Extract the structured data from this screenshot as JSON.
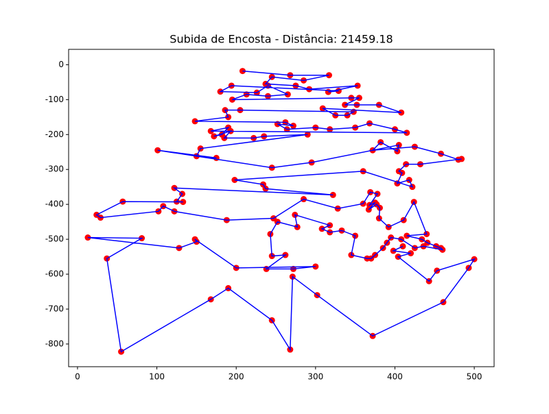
{
  "chart_data": {
    "type": "line",
    "title": "Subida de Encosta - Distância: 21459.18",
    "line_color": "#0000ff",
    "marker_color": "#ff0000",
    "x": [
      208,
      268,
      317,
      285,
      245,
      237,
      275,
      292,
      353,
      316,
      329,
      194,
      180,
      226,
      240,
      265,
      240,
      213,
      195,
      345,
      355,
      337,
      352,
      380,
      408,
      309,
      325,
      340,
      348,
      205,
      186,
      190,
      148,
      262,
      272,
      252,
      264,
      300,
      318,
      350,
      368,
      400,
      415,
      168,
      190,
      182,
      172,
      193,
      185,
      222,
      235,
      290,
      155,
      150,
      175,
      101,
      245,
      295,
      405,
      403,
      382,
      372,
      425,
      458,
      480,
      484,
      432,
      414,
      405,
      409,
      403,
      418,
      422,
      360,
      198,
      234,
      237,
      322,
      122,
      132,
      125,
      133,
      57,
      24,
      29,
      102,
      108,
      122,
      188,
      247,
      285,
      328,
      360,
      369,
      378,
      368,
      375,
      367,
      377,
      381,
      380,
      392,
      411,
      424,
      440,
      415,
      434,
      441,
      452,
      458,
      460,
      436,
      425,
      408,
      395,
      390,
      385,
      375,
      370,
      365,
      345,
      350,
      333,
      318,
      308,
      318,
      274,
      277,
      252,
      243,
      245,
      262,
      238,
      272,
      300,
      200,
      148,
      150,
      128,
      13,
      81,
      37,
      55,
      168,
      190,
      245,
      268,
      271,
      302,
      372,
      461,
      493,
      500,
      453,
      443,
      404,
      420,
      398,
      410
    ],
    "y": [
      -18,
      -30,
      -30,
      -45,
      -35,
      -55,
      -60,
      -70,
      -60,
      -78,
      -75,
      -60,
      -77,
      -80,
      -60,
      -85,
      -90,
      -85,
      -100,
      -95,
      -95,
      -115,
      -115,
      -115,
      -137,
      -125,
      -145,
      -145,
      -135,
      -130,
      -130,
      -150,
      -162,
      -165,
      -175,
      -170,
      -185,
      -180,
      -185,
      -180,
      -168,
      -185,
      -195,
      -190,
      -180,
      -200,
      -205,
      -190,
      -210,
      -210,
      -205,
      -200,
      -240,
      -262,
      -267,
      -245,
      -295,
      -280,
      -230,
      -248,
      -222,
      -245,
      -235,
      -255,
      -272,
      -270,
      -285,
      -285,
      -305,
      -310,
      -340,
      -330,
      -350,
      -305,
      -330,
      -343,
      -355,
      -373,
      -353,
      -370,
      -392,
      -393,
      -392,
      -430,
      -438,
      -420,
      -405,
      -420,
      -445,
      -440,
      -385,
      -412,
      -398,
      -365,
      -370,
      -402,
      -395,
      -415,
      -400,
      -410,
      -440,
      -465,
      -445,
      -393,
      -485,
      -490,
      -500,
      -510,
      -520,
      -525,
      -530,
      -520,
      -525,
      -500,
      -495,
      -510,
      -525,
      -545,
      -555,
      -555,
      -545,
      -490,
      -475,
      -480,
      -470,
      -460,
      -430,
      -465,
      -450,
      -485,
      -548,
      -545,
      -585,
      -585,
      -578,
      -582,
      -500,
      -507,
      -525,
      -495,
      -497,
      -555,
      -822,
      -672,
      -640,
      -732,
      -816,
      -607,
      -660,
      -777,
      -680,
      -582,
      -557,
      -590,
      -620,
      -550,
      -540,
      -533,
      -520
    ],
    "xlim": [
      -11.2,
      525
    ],
    "ylim": [
      -865,
      44
    ],
    "xticks": [
      0,
      100,
      200,
      300,
      400,
      500
    ],
    "yticks": [
      0,
      -100,
      -200,
      -300,
      -400,
      -500,
      -600,
      -700,
      -800
    ]
  }
}
